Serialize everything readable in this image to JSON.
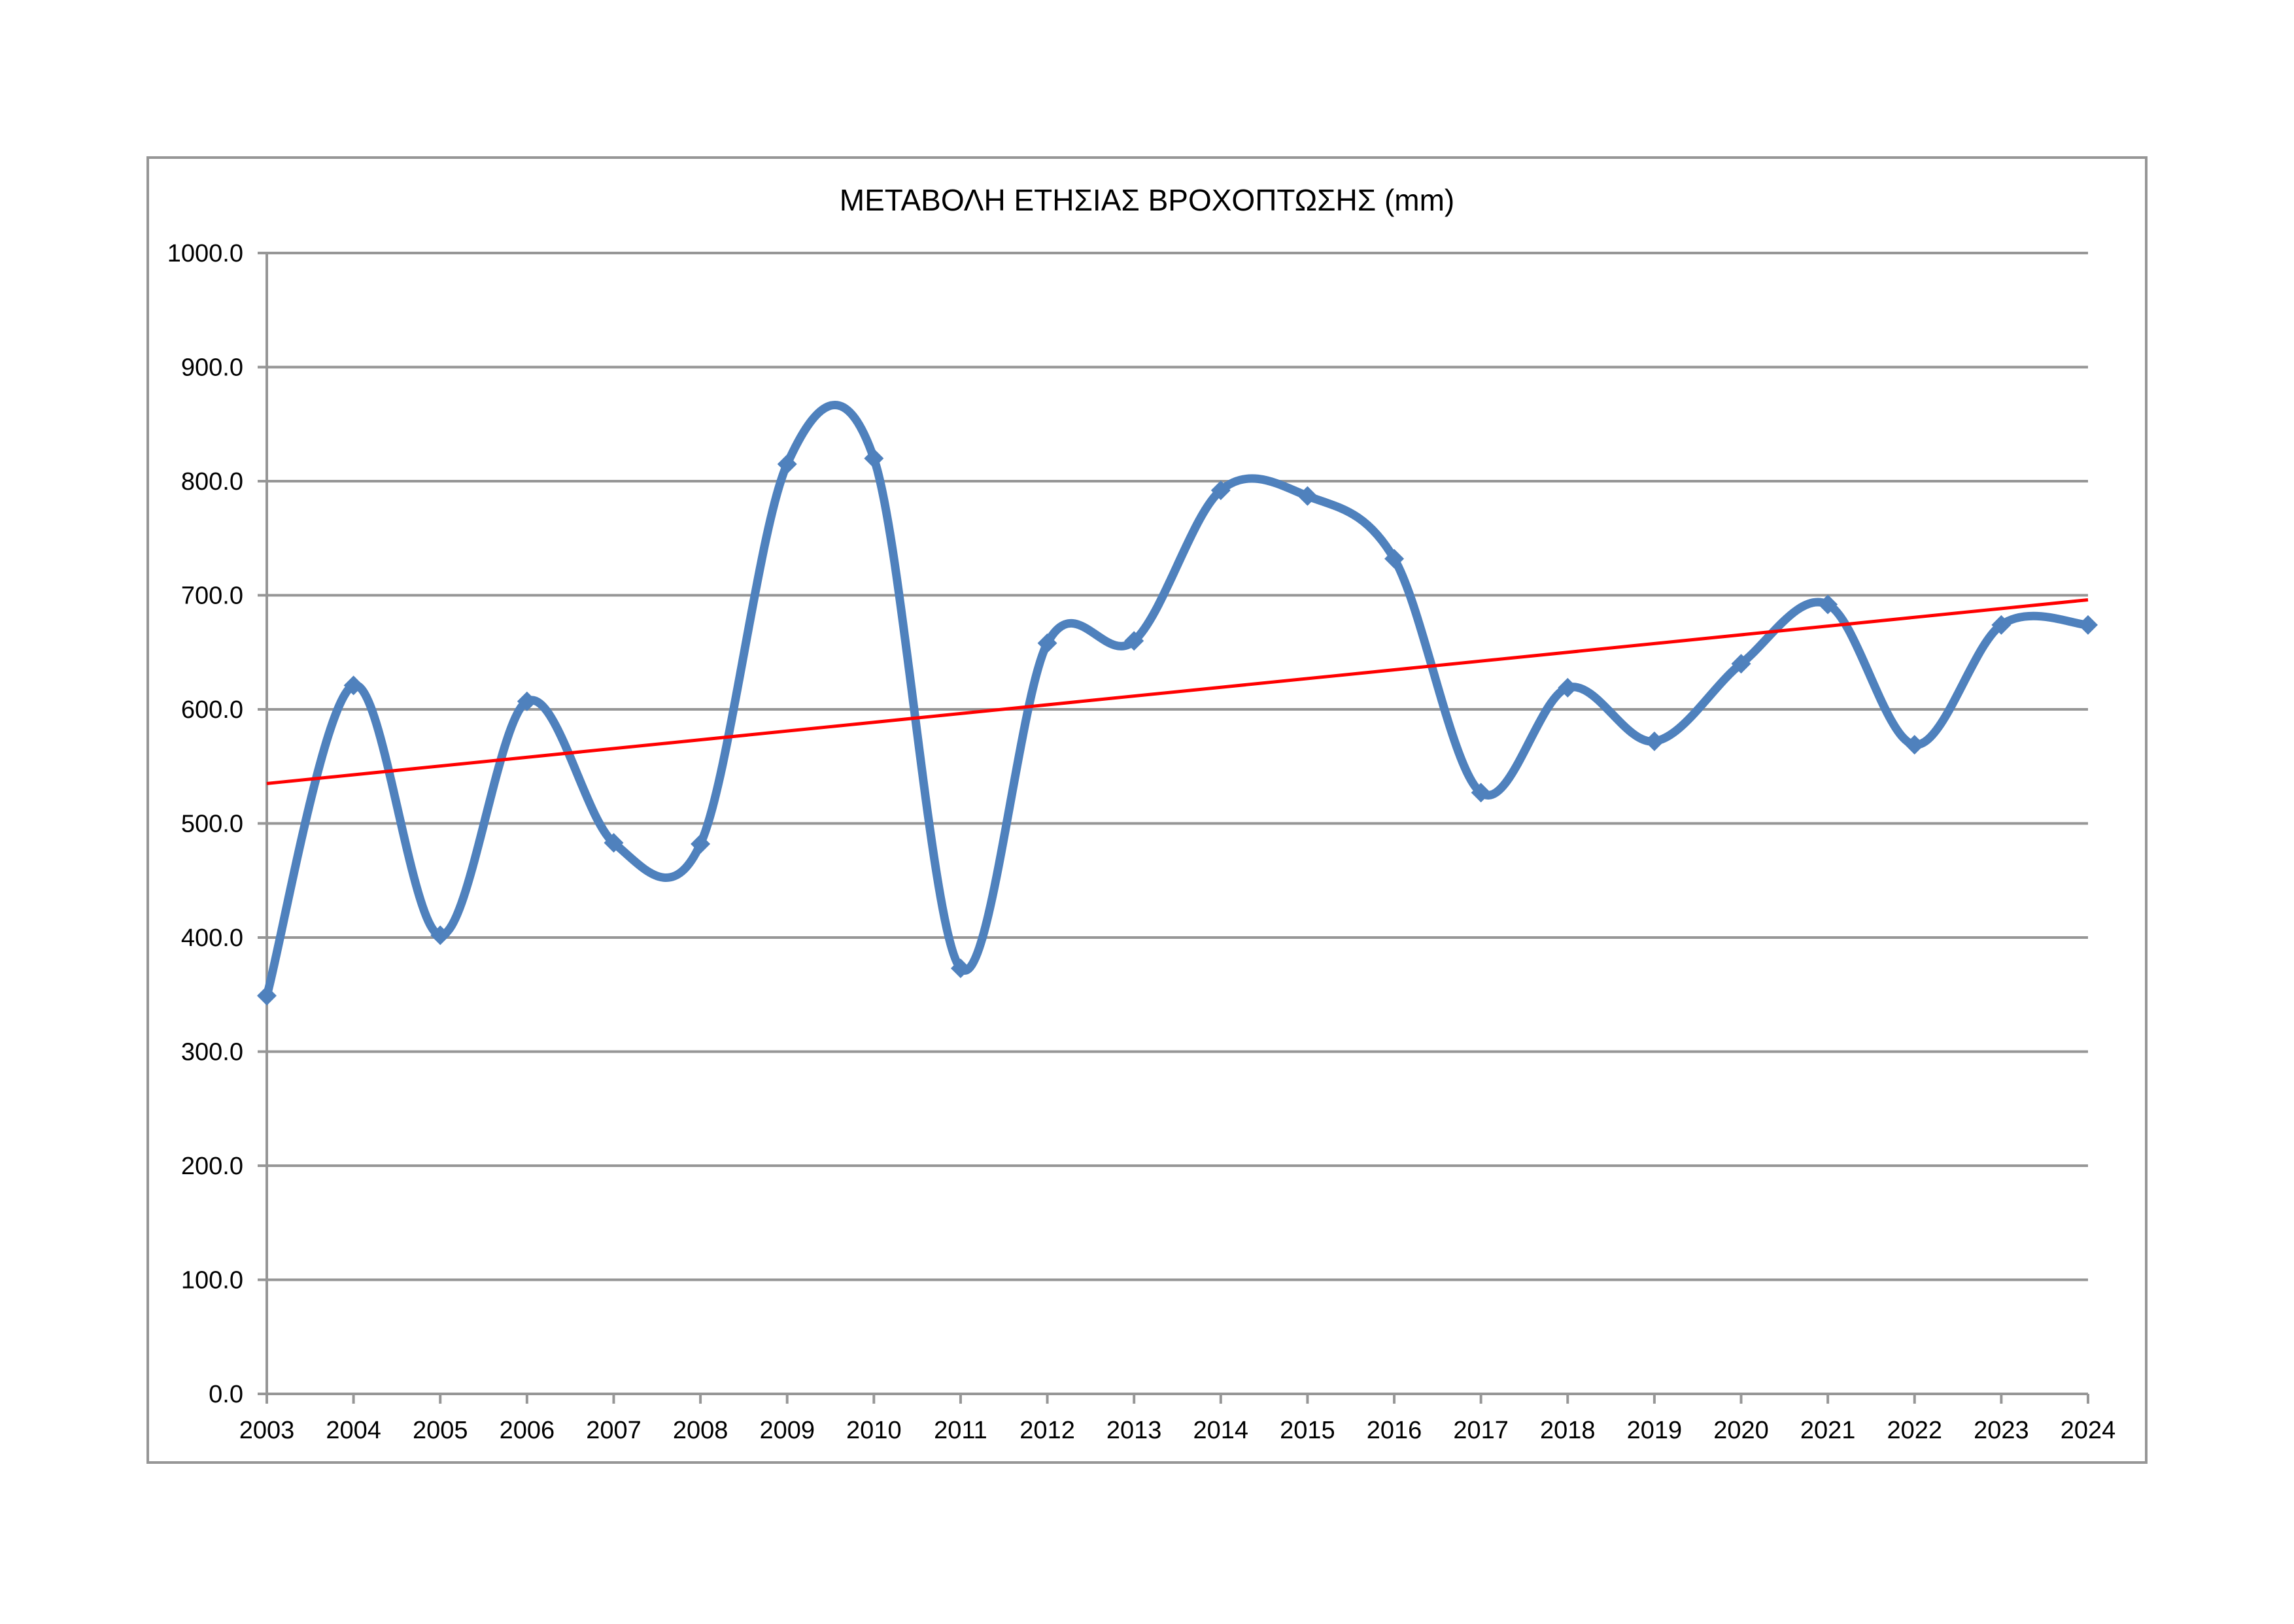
{
  "chart_data": {
    "type": "line",
    "title": "ΜΕΤΑΒΟΛΗ ΕΤΗΣΙΑΣ ΒΡΟΧΟΠΤΩΣΗΣ (mm)",
    "categories": [
      "2003",
      "2004",
      "2005",
      "2006",
      "2007",
      "2008",
      "2009",
      "2010",
      "2011",
      "2012",
      "2013",
      "2014",
      "2015",
      "2016",
      "2017",
      "2018",
      "2019",
      "2020",
      "2021",
      "2022",
      "2023",
      "2024"
    ],
    "series": [
      {
        "values": [
          349,
          621,
          402,
          607,
          483,
          482,
          815,
          820,
          373,
          658,
          660,
          792,
          787,
          732,
          527,
          619,
          572,
          640,
          692,
          569,
          674,
          674
        ],
        "color": "#4F81BD",
        "marker": "diamond",
        "smooth": true
      }
    ],
    "trendline": {
      "type": "linear",
      "start_value": 535,
      "end_value": 696,
      "color": "#FF0000"
    },
    "xlabel": "",
    "ylabel": "",
    "ylim": [
      0,
      1000
    ],
    "y_tick_step": 100,
    "y_tick_labels": [
      "1000.0",
      "900.0",
      "800.0",
      "700.0",
      "600.0",
      "500.0",
      "400.0",
      "300.0",
      "200.0",
      "100.0",
      "0.0"
    ],
    "grid": "horizontal-only",
    "legend_position": "none",
    "gridline_color": "#969696",
    "axis_color": "#969696"
  }
}
